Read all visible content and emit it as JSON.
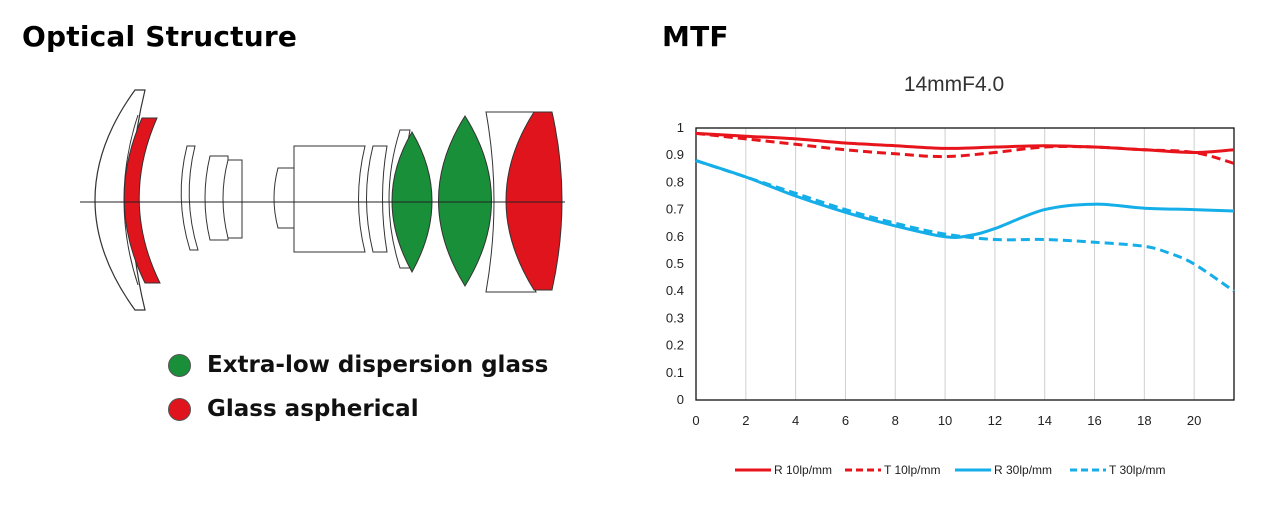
{
  "left": {
    "title": "Optical Structure",
    "legend": [
      {
        "label": "Extra-low dispersion glass",
        "color": "#1a8f3a"
      },
      {
        "label": "Glass aspherical",
        "color": "#e0141c"
      }
    ]
  },
  "right": {
    "title": "MTF"
  },
  "chart_data": {
    "type": "line",
    "title": "14mmF4.0",
    "xlim": [
      0,
      21.6
    ],
    "ylim": [
      0,
      1
    ],
    "x_ticks": [
      "0",
      "2",
      "4",
      "6",
      "8",
      "10",
      "12",
      "14",
      "16",
      "18",
      "20"
    ],
    "y_ticks": [
      "0",
      "0.1",
      "0.2",
      "0.3",
      "0.4",
      "0.5",
      "0.6",
      "0.7",
      "0.8",
      "0.9",
      "1"
    ],
    "grid": "vertical",
    "legend_position": "bottom",
    "series": [
      {
        "name": "R 10lp/mm",
        "color": "#e8141c",
        "dash": "solid",
        "x": [
          0,
          2,
          4,
          6,
          8,
          10,
          12,
          14,
          16,
          18,
          20,
          21.6
        ],
        "y": [
          0.98,
          0.97,
          0.96,
          0.945,
          0.935,
          0.925,
          0.93,
          0.935,
          0.93,
          0.92,
          0.91,
          0.92
        ]
      },
      {
        "name": "T 10lp/mm",
        "color": "#e8141c",
        "dash": "dashed",
        "x": [
          0,
          2,
          4,
          6,
          8,
          10,
          12,
          14,
          16,
          18,
          20,
          21.6
        ],
        "y": [
          0.98,
          0.96,
          0.94,
          0.92,
          0.905,
          0.895,
          0.91,
          0.93,
          0.93,
          0.92,
          0.91,
          0.87
        ]
      },
      {
        "name": "R 30lp/mm",
        "color": "#15aee8",
        "dash": "solid",
        "x": [
          0,
          2,
          4,
          6,
          8,
          10,
          11,
          12,
          14,
          16,
          18,
          20,
          21.6
        ],
        "y": [
          0.88,
          0.82,
          0.75,
          0.69,
          0.64,
          0.6,
          0.605,
          0.63,
          0.7,
          0.72,
          0.705,
          0.7,
          0.695
        ]
      },
      {
        "name": "T 30lp/mm",
        "color": "#15aee8",
        "dash": "dashed",
        "x": [
          0,
          2,
          4,
          6,
          8,
          10,
          12,
          14,
          16,
          18,
          19,
          20,
          21.6
        ],
        "y": [
          0.88,
          0.82,
          0.76,
          0.7,
          0.65,
          0.61,
          0.59,
          0.59,
          0.58,
          0.565,
          0.54,
          0.5,
          0.4
        ]
      }
    ]
  }
}
